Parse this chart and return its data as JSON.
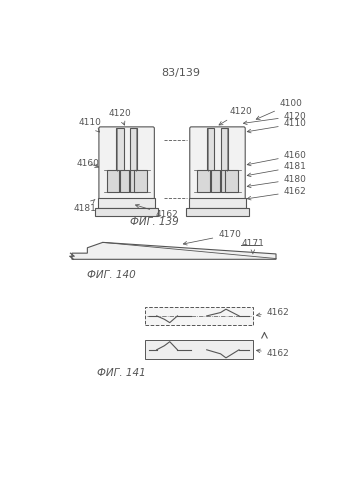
{
  "page_label": "83/139",
  "bg_color": "#ffffff",
  "lc": "#555555",
  "lc_dark": "#333333",
  "fig139_caption": "ФИГ. 139",
  "fig140_caption": "ФИГ. 140",
  "fig141_caption": "ФИГ. 141",
  "label_fs": 6.5,
  "caption_fs": 7.5,
  "page_fs": 8.0
}
